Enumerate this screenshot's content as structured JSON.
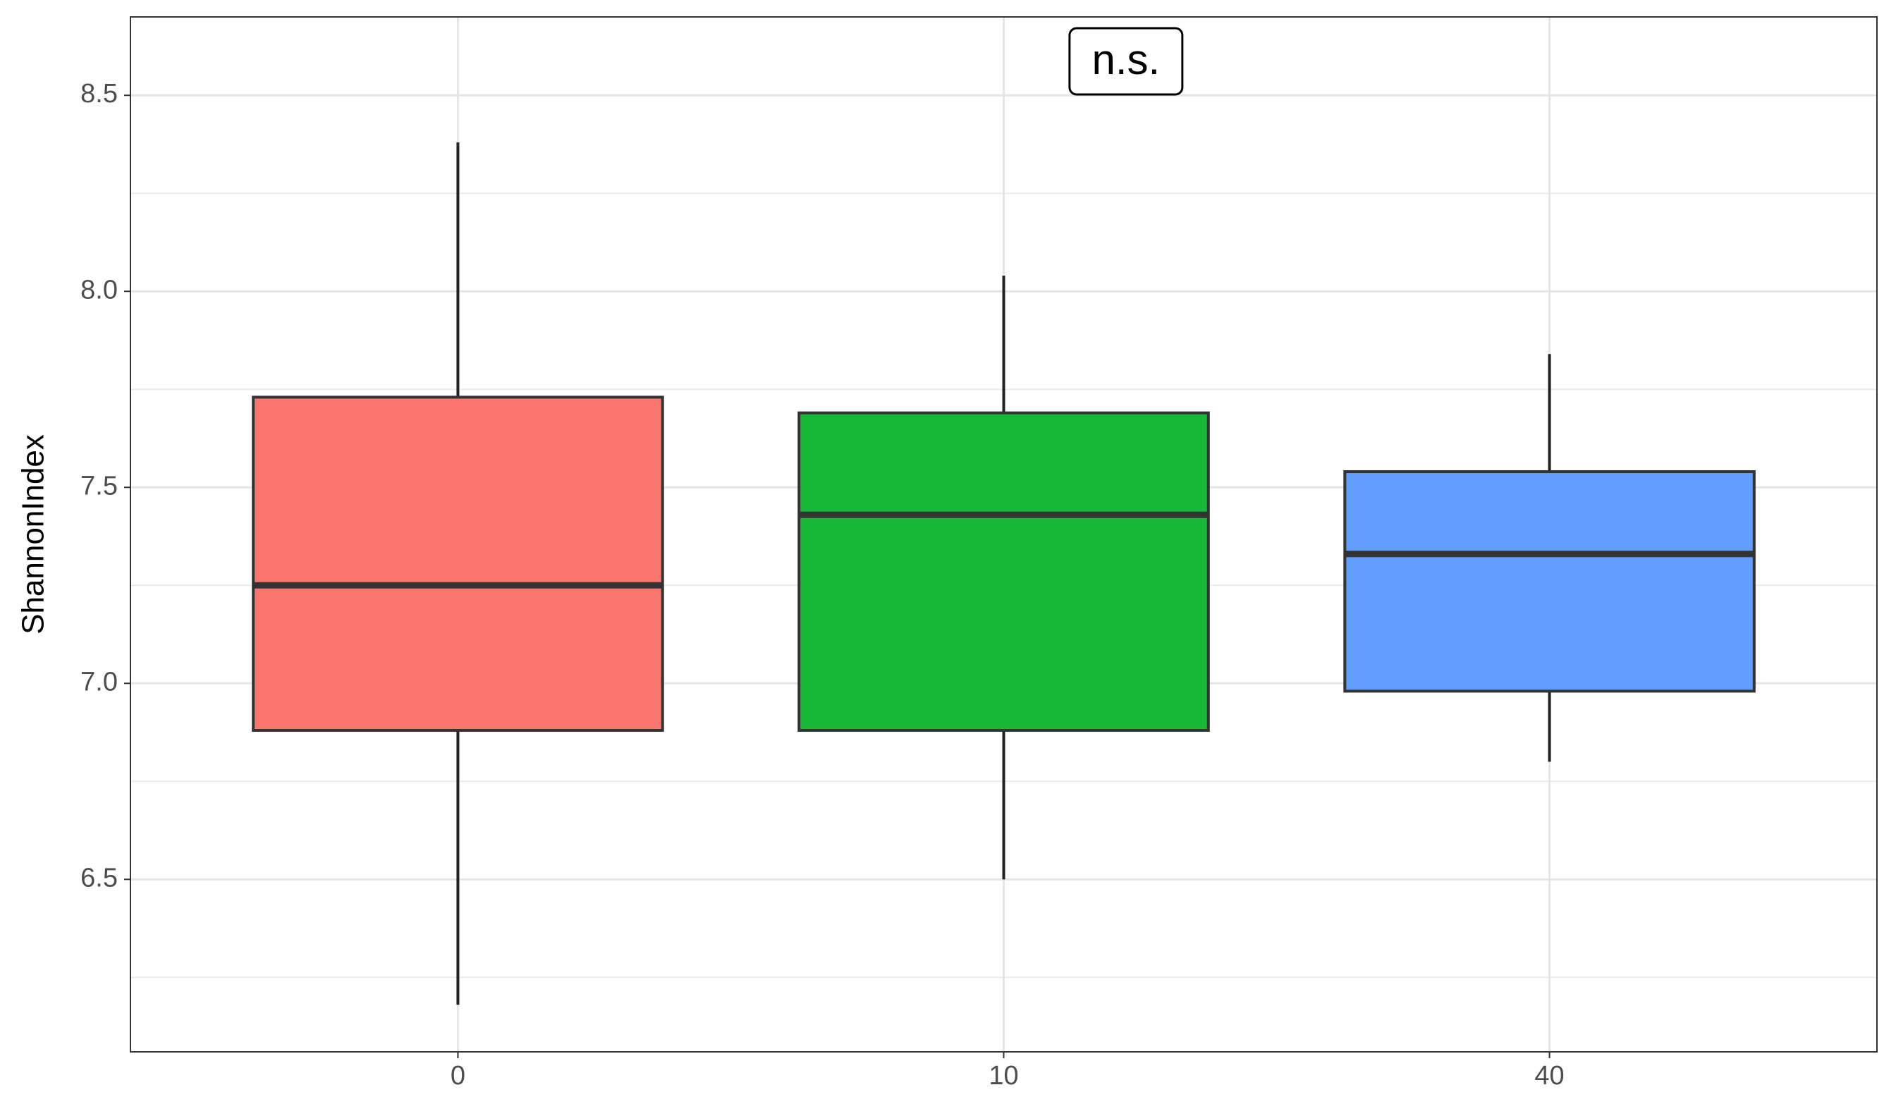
{
  "chart_data": {
    "type": "box",
    "y_label": "ShannonIndex",
    "annotation": "n.s.",
    "categories": [
      "0",
      "10",
      "40"
    ],
    "colors": [
      "#F8766D",
      "#17B837",
      "#619CFF"
    ],
    "boxes": [
      {
        "min": 6.18,
        "q1": 6.88,
        "median": 7.25,
        "q3": 7.73,
        "max": 8.38
      },
      {
        "min": 6.5,
        "q1": 6.88,
        "median": 7.43,
        "q3": 7.69,
        "max": 8.04
      },
      {
        "min": 6.8,
        "q1": 6.98,
        "median": 7.33,
        "q3": 7.54,
        "max": 7.84
      }
    ],
    "ylim": [
      6.06,
      8.7
    ],
    "yticks": [
      6.5,
      {
        "value": 7,
        "label": "7.0"
      },
      7.5,
      {
        "value": 8,
        "label": "8.0"
      },
      8.5
    ],
    "grid": true
  }
}
